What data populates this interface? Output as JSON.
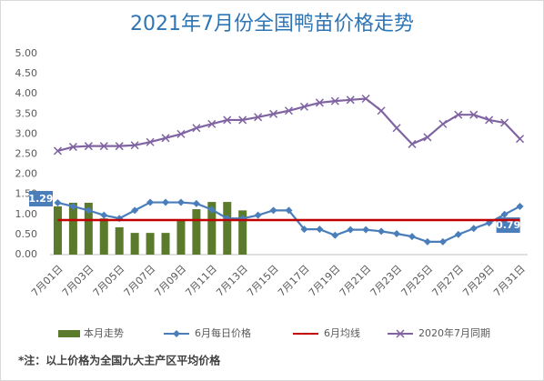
{
  "chart_data": {
    "type": "combo",
    "title": "2021年7月份全国鸭苗价格走势",
    "note": "*注：以上价格为全国九大主产区平均价格",
    "categories": [
      "7月01日",
      null,
      "7月03日",
      null,
      "7月05日",
      null,
      "7月07日",
      null,
      "7月09日",
      null,
      "7月11日",
      null,
      "7月13日",
      null,
      "7月15日",
      null,
      "7月17日",
      null,
      "7月19日",
      null,
      "7月21日",
      null,
      "7月23日",
      null,
      "7月25日",
      null,
      "7月27日",
      null,
      "7月29日",
      null,
      "7月31日"
    ],
    "ylim": [
      0,
      5
    ],
    "yticks": [
      {
        "value": 0,
        "label": "0.00"
      },
      {
        "value": 0.5,
        "label": "0.50"
      },
      {
        "value": 1,
        "label": "1.00"
      },
      {
        "value": 1.5,
        "label": "1.50"
      },
      {
        "value": 2,
        "label": "2.00"
      },
      {
        "value": 2.5,
        "label": "2.50"
      },
      {
        "value": 3,
        "label": "3.00"
      },
      {
        "value": 3.5,
        "label": "3.50"
      },
      {
        "value": 4,
        "label": "4.00"
      },
      {
        "value": 4.5,
        "label": "4.50"
      },
      {
        "value": 5,
        "label": "5.00"
      }
    ],
    "series": [
      {
        "name": "本月走势",
        "kind": "bar",
        "color": "#5b7a2c",
        "values": [
          1.2,
          1.29,
          1.29,
          0.9,
          0.68,
          0.54,
          0.54,
          0.54,
          0.84,
          1.13,
          1.31,
          1.31,
          1.1,
          null,
          null,
          null,
          null,
          null,
          null,
          null,
          null,
          null,
          null,
          null,
          null,
          null,
          null,
          null,
          null,
          null,
          null
        ]
      },
      {
        "name": "6月每日价格",
        "kind": "line",
        "marker": "diamond",
        "color": "#4a7ebb",
        "values": [
          1.29,
          1.2,
          1.1,
          0.98,
          0.9,
          1.1,
          1.3,
          1.3,
          1.3,
          1.27,
          1.12,
          0.9,
          0.9,
          0.98,
          1.1,
          1.1,
          0.63,
          0.63,
          0.48,
          0.62,
          0.62,
          0.58,
          0.52,
          0.45,
          0.32,
          0.32,
          0.5,
          0.65,
          0.79,
          1.0,
          1.2
        ],
        "value_labels": [
          "1.29",
          null,
          null,
          null,
          null,
          null,
          null,
          null,
          null,
          null,
          null,
          null,
          null,
          null,
          null,
          null,
          null,
          null,
          null,
          null,
          null,
          null,
          null,
          null,
          null,
          null,
          null,
          null,
          "0.79",
          null,
          null
        ]
      },
      {
        "name": "6月均线",
        "kind": "line",
        "marker": "none",
        "color": "#c00000",
        "values": [
          0.86,
          0.86,
          0.86,
          0.86,
          0.86,
          0.86,
          0.86,
          0.86,
          0.86,
          0.86,
          0.86,
          0.86,
          0.86,
          0.86,
          0.86,
          0.86,
          0.86,
          0.86,
          0.86,
          0.86,
          0.86,
          0.86,
          0.86,
          0.86,
          0.86,
          0.86,
          0.86,
          0.86,
          0.86,
          0.86,
          0.86
        ]
      },
      {
        "name": "2020年7月同期",
        "kind": "line",
        "marker": "x",
        "color": "#8064a2",
        "values": [
          2.58,
          2.68,
          2.7,
          2.7,
          2.7,
          2.72,
          2.8,
          2.9,
          3.0,
          3.15,
          3.25,
          3.35,
          3.35,
          3.42,
          3.5,
          3.58,
          3.68,
          3.78,
          3.82,
          3.85,
          3.88,
          3.58,
          3.15,
          2.75,
          2.92,
          3.25,
          3.48,
          3.48,
          3.35,
          3.28,
          2.88
        ]
      }
    ],
    "grid": false,
    "legend": "bottom"
  }
}
